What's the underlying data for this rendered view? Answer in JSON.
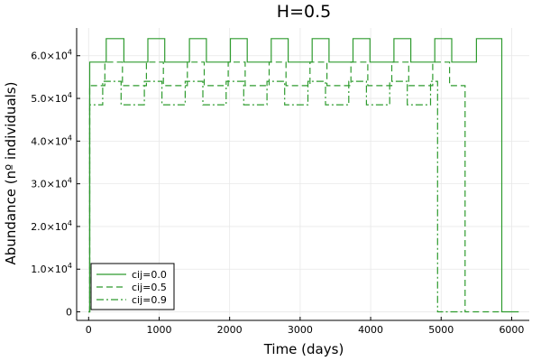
{
  "chart_data": {
    "type": "line",
    "title": "H=0.5",
    "xlabel": "Time (days)",
    "ylabel": "Abundance (nº individuals)",
    "xlim": [
      -170,
      6250
    ],
    "ylim": [
      -2000,
      66500
    ],
    "xticks": [
      0,
      1000,
      2000,
      3000,
      4000,
      5000,
      6000
    ],
    "xtick_labels": [
      "0",
      "1000",
      "2000",
      "3000",
      "4000",
      "5000",
      "6000"
    ],
    "yticks": [
      0,
      10000,
      20000,
      30000,
      40000,
      50000,
      60000
    ],
    "ytick_labels": [
      {
        "mantissa": "0",
        "exp": ""
      },
      {
        "mantissa": "1.0×10",
        "exp": "4"
      },
      {
        "mantissa": "2.0×10",
        "exp": "4"
      },
      {
        "mantissa": "3.0×10",
        "exp": "4"
      },
      {
        "mantissa": "4.0×10",
        "exp": "4"
      },
      {
        "mantissa": "5.0×10",
        "exp": "4"
      },
      {
        "mantissa": "6.0×10",
        "exp": "4"
      }
    ],
    "grid": true,
    "legend_position": "bottom-left",
    "color": "#2e9b2e",
    "series": [
      {
        "name": "cij=0.0",
        "style": "solid",
        "points": [
          [
            0,
            0
          ],
          [
            15,
            0
          ],
          [
            15,
            58500
          ],
          [
            250,
            58500
          ],
          [
            250,
            64000
          ],
          [
            500,
            64000
          ],
          [
            500,
            58500
          ],
          [
            840,
            58500
          ],
          [
            840,
            64000
          ],
          [
            1080,
            64000
          ],
          [
            1080,
            58500
          ],
          [
            1430,
            58500
          ],
          [
            1430,
            64000
          ],
          [
            1670,
            64000
          ],
          [
            1670,
            58500
          ],
          [
            2010,
            58500
          ],
          [
            2010,
            64000
          ],
          [
            2250,
            64000
          ],
          [
            2250,
            58500
          ],
          [
            2590,
            58500
          ],
          [
            2590,
            64000
          ],
          [
            2830,
            64000
          ],
          [
            2830,
            58500
          ],
          [
            3170,
            58500
          ],
          [
            3170,
            64000
          ],
          [
            3410,
            64000
          ],
          [
            3410,
            58500
          ],
          [
            3750,
            58500
          ],
          [
            3750,
            64000
          ],
          [
            3990,
            64000
          ],
          [
            3990,
            58500
          ],
          [
            4330,
            58500
          ],
          [
            4330,
            64000
          ],
          [
            4570,
            64000
          ],
          [
            4570,
            58500
          ],
          [
            4910,
            58500
          ],
          [
            4910,
            64000
          ],
          [
            5150,
            64000
          ],
          [
            5150,
            58500
          ],
          [
            5500,
            58500
          ],
          [
            5500,
            64000
          ],
          [
            5860,
            64000
          ],
          [
            5860,
            0
          ],
          [
            6100,
            0
          ]
        ]
      },
      {
        "name": "cij=0.5",
        "style": "dash",
        "points": [
          [
            0,
            0
          ],
          [
            15,
            0
          ],
          [
            15,
            53000
          ],
          [
            230,
            53000
          ],
          [
            230,
            58500
          ],
          [
            480,
            58500
          ],
          [
            480,
            53000
          ],
          [
            820,
            53000
          ],
          [
            820,
            58500
          ],
          [
            1060,
            58500
          ],
          [
            1060,
            53000
          ],
          [
            1400,
            53000
          ],
          [
            1400,
            58500
          ],
          [
            1640,
            58500
          ],
          [
            1640,
            53000
          ],
          [
            1980,
            53000
          ],
          [
            1980,
            58500
          ],
          [
            2220,
            58500
          ],
          [
            2220,
            53000
          ],
          [
            2560,
            53000
          ],
          [
            2560,
            58500
          ],
          [
            2800,
            58500
          ],
          [
            2800,
            53000
          ],
          [
            3140,
            53000
          ],
          [
            3140,
            58500
          ],
          [
            3380,
            58500
          ],
          [
            3380,
            53000
          ],
          [
            3720,
            53000
          ],
          [
            3720,
            58500
          ],
          [
            3960,
            58500
          ],
          [
            3960,
            53000
          ],
          [
            4300,
            53000
          ],
          [
            4300,
            58500
          ],
          [
            4540,
            58500
          ],
          [
            4540,
            53000
          ],
          [
            4880,
            53000
          ],
          [
            4880,
            58500
          ],
          [
            5120,
            58500
          ],
          [
            5120,
            53000
          ],
          [
            5340,
            53000
          ],
          [
            5340,
            0
          ],
          [
            5860,
            0
          ]
        ]
      },
      {
        "name": "cij=0.9",
        "style": "dashdot",
        "points": [
          [
            0,
            0
          ],
          [
            15,
            0
          ],
          [
            15,
            48500
          ],
          [
            200,
            48500
          ],
          [
            200,
            54000
          ],
          [
            460,
            54000
          ],
          [
            460,
            48500
          ],
          [
            790,
            48500
          ],
          [
            790,
            54000
          ],
          [
            1040,
            54000
          ],
          [
            1040,
            48500
          ],
          [
            1370,
            48500
          ],
          [
            1370,
            54000
          ],
          [
            1620,
            54000
          ],
          [
            1620,
            48500
          ],
          [
            1950,
            48500
          ],
          [
            1950,
            54000
          ],
          [
            2200,
            54000
          ],
          [
            2200,
            48500
          ],
          [
            2530,
            48500
          ],
          [
            2530,
            54000
          ],
          [
            2780,
            54000
          ],
          [
            2780,
            48500
          ],
          [
            3110,
            48500
          ],
          [
            3110,
            54000
          ],
          [
            3360,
            54000
          ],
          [
            3360,
            48500
          ],
          [
            3690,
            48500
          ],
          [
            3690,
            54000
          ],
          [
            3940,
            54000
          ],
          [
            3940,
            48500
          ],
          [
            4270,
            48500
          ],
          [
            4270,
            54000
          ],
          [
            4520,
            54000
          ],
          [
            4520,
            48500
          ],
          [
            4850,
            48500
          ],
          [
            4850,
            54000
          ],
          [
            4950,
            54000
          ],
          [
            4950,
            0
          ],
          [
            5340,
            0
          ]
        ]
      }
    ]
  }
}
